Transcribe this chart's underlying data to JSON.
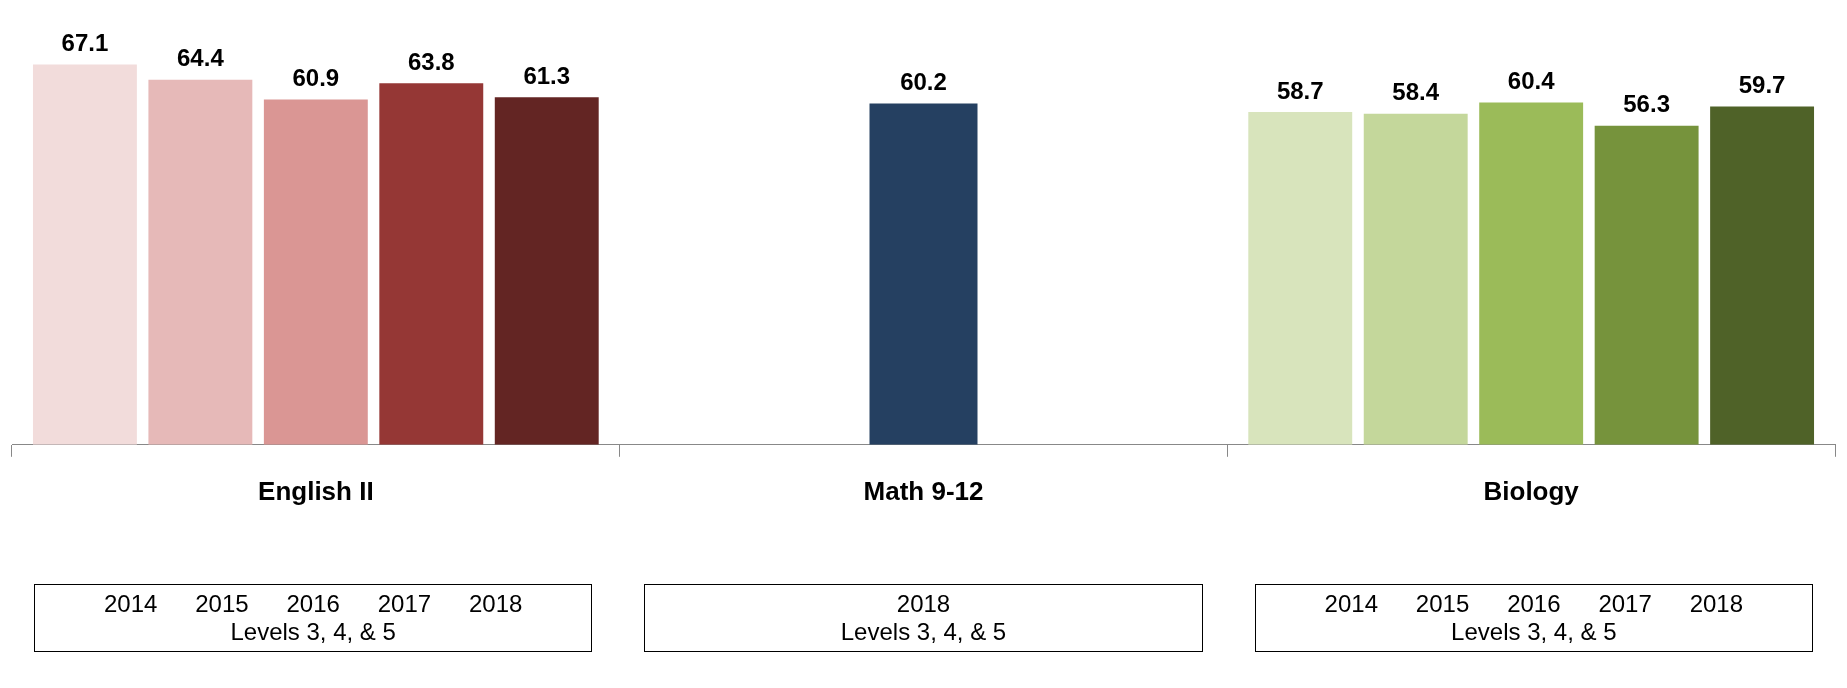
{
  "chart_data": {
    "type": "bar",
    "categories": [
      "English II",
      "Math 9-12",
      "Biology"
    ],
    "series": [
      {
        "colors": [
          "#f2dcdb",
          null,
          "#d8e4bc"
        ],
        "values": [
          67.1,
          null,
          58.7
        ]
      },
      {
        "colors": [
          "#e6b9b8",
          null,
          "#c4d79b"
        ],
        "values": [
          64.4,
          null,
          58.4
        ]
      },
      {
        "colors": [
          "#da9694",
          null,
          "#9bbb59"
        ],
        "values": [
          60.9,
          null,
          60.4
        ]
      },
      {
        "colors": [
          "#953735",
          null,
          "#76933c"
        ],
        "values": [
          63.8,
          null,
          56.3
        ]
      },
      {
        "colors": [
          "#632523",
          "#254061",
          "#4f6228"
        ],
        "values": [
          61.3,
          60.2,
          59.7
        ]
      }
    ],
    "data_labels": true,
    "legend": false,
    "grid": false,
    "annotations": [
      "2014 2015 2016 2017 2018",
      "Levels 3, 4, & 5",
      "2018",
      "Levels 3, 4, & 5",
      "2014 2015 2016 2017 2018",
      "Levels 3, 4, & 5"
    ]
  }
}
